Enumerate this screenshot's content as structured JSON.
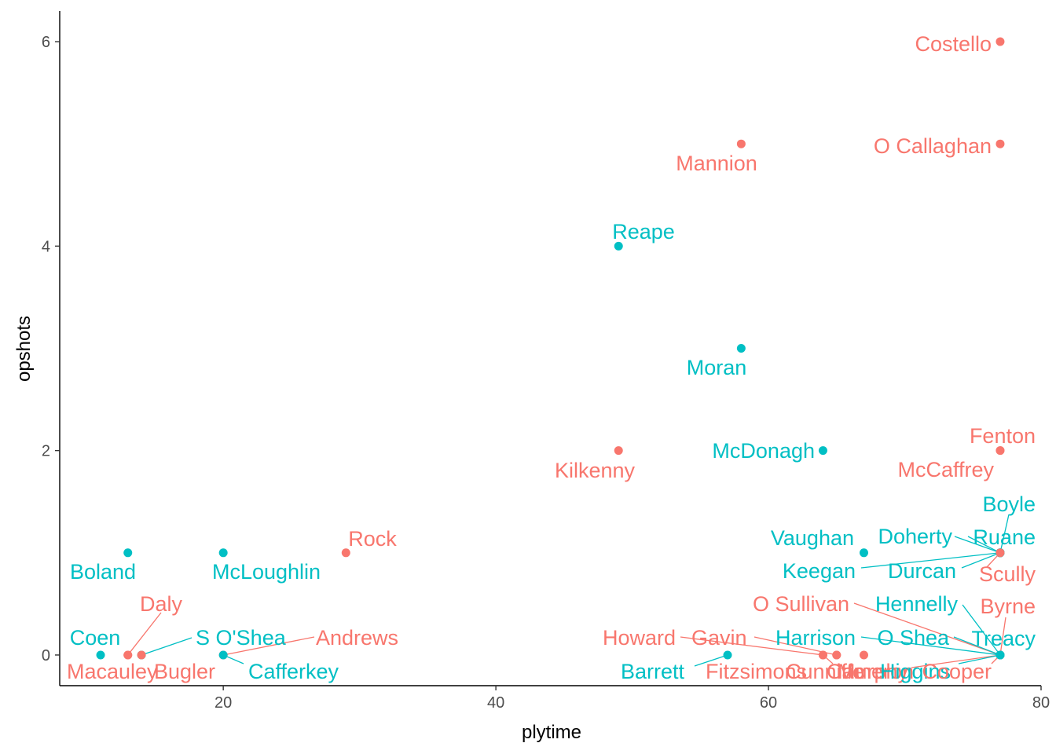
{
  "chart_data": {
    "type": "scatter",
    "xlabel": "plytime",
    "ylabel": "opshots",
    "xlim": [
      8,
      80
    ],
    "ylim": [
      -0.3,
      6.3
    ],
    "x_ticks": [
      20,
      40,
      60,
      80
    ],
    "y_ticks": [
      0,
      2,
      4,
      6
    ],
    "grid": false,
    "legend": "none",
    "group_colors": {
      "red": "#F8766D",
      "teal": "#00BFC4"
    },
    "points": [
      {
        "name": "Costello",
        "x": 77,
        "y": 6,
        "group": "red"
      },
      {
        "name": "O Callaghan",
        "x": 77,
        "y": 5,
        "group": "red"
      },
      {
        "name": "Mannion",
        "x": 58,
        "y": 5,
        "group": "red"
      },
      {
        "name": "Reape",
        "x": 49,
        "y": 4,
        "group": "teal"
      },
      {
        "name": "Moran",
        "x": 58,
        "y": 3,
        "group": "teal"
      },
      {
        "name": "Kilkenny",
        "x": 49,
        "y": 2,
        "group": "red"
      },
      {
        "name": "McDonagh",
        "x": 64,
        "y": 2,
        "group": "teal"
      },
      {
        "name": "Fenton",
        "x": 77,
        "y": 2,
        "group": "red"
      },
      {
        "name": "McCaffrey",
        "x": 77,
        "y": 2,
        "group": "red"
      },
      {
        "name": "Boland",
        "x": 13,
        "y": 1,
        "group": "teal"
      },
      {
        "name": "McLoughlin",
        "x": 20,
        "y": 1,
        "group": "teal"
      },
      {
        "name": "Rock",
        "x": 29,
        "y": 1,
        "group": "red"
      },
      {
        "name": "Vaughan",
        "x": 67,
        "y": 1,
        "group": "teal"
      },
      {
        "name": "Keegan",
        "x": 77,
        "y": 1,
        "group": "teal"
      },
      {
        "name": "Doherty",
        "x": 77,
        "y": 1,
        "group": "teal"
      },
      {
        "name": "Ruane",
        "x": 77,
        "y": 1,
        "group": "teal"
      },
      {
        "name": "Durcan",
        "x": 77,
        "y": 1,
        "group": "teal"
      },
      {
        "name": "Boyle",
        "x": 77,
        "y": 1,
        "group": "teal"
      },
      {
        "name": "Scully",
        "x": 77,
        "y": 1,
        "group": "red"
      },
      {
        "name": "Coen",
        "x": 11,
        "y": 0,
        "group": "teal"
      },
      {
        "name": "Daly",
        "x": 13,
        "y": 0,
        "group": "red"
      },
      {
        "name": "Macauley",
        "x": 13,
        "y": 0,
        "group": "red"
      },
      {
        "name": "S O'Shea",
        "x": 14,
        "y": 0,
        "group": "teal"
      },
      {
        "name": "Bugler",
        "x": 14,
        "y": 0,
        "group": "red"
      },
      {
        "name": "Andrews",
        "x": 20,
        "y": 0,
        "group": "red"
      },
      {
        "name": "Cafferkey",
        "x": 20,
        "y": 0,
        "group": "teal"
      },
      {
        "name": "Barrett",
        "x": 57,
        "y": 0,
        "group": "teal"
      },
      {
        "name": "Howard",
        "x": 64,
        "y": 0,
        "group": "red"
      },
      {
        "name": "Gavin",
        "x": 65,
        "y": 0,
        "group": "red"
      },
      {
        "name": "Fitzsimons",
        "x": 64,
        "y": 0,
        "group": "red"
      },
      {
        "name": "Cunniffe",
        "x": 65,
        "y": 0,
        "group": "red"
      },
      {
        "name": "Cameron",
        "x": 67,
        "y": 0,
        "group": "red"
      },
      {
        "name": "Murphy",
        "x": 77,
        "y": 0,
        "group": "red"
      },
      {
        "name": "Higgins",
        "x": 77,
        "y": 0,
        "group": "teal"
      },
      {
        "name": "Cooper",
        "x": 77,
        "y": 0,
        "group": "red"
      },
      {
        "name": "O Sullivan",
        "x": 77,
        "y": 0,
        "group": "red"
      },
      {
        "name": "Hennelly",
        "x": 77,
        "y": 0,
        "group": "teal"
      },
      {
        "name": "Byrne",
        "x": 77,
        "y": 0,
        "group": "red"
      },
      {
        "name": "Harrison",
        "x": 77,
        "y": 0,
        "group": "teal"
      },
      {
        "name": "O Shea",
        "x": 77,
        "y": 0,
        "group": "teal"
      },
      {
        "name": "Treacy",
        "x": 77,
        "y": 0,
        "group": "teal"
      }
    ]
  }
}
